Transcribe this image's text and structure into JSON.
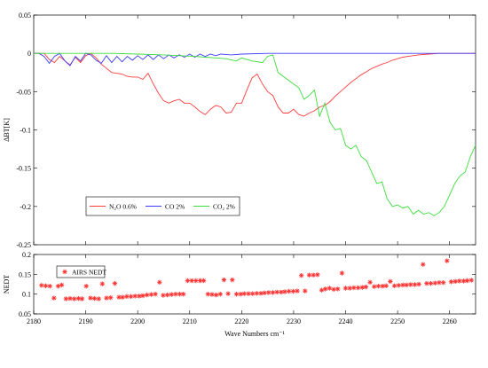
{
  "chart_data": [
    {
      "type": "line",
      "ylabel": "ΔBT[K]",
      "xlim": [
        2180,
        2265
      ],
      "ylim": [
        -0.25,
        0.05
      ],
      "yticks": [
        "0.05",
        "0",
        "-0.05",
        "-0.1",
        "-0.15",
        "-0.2",
        "-0.25"
      ],
      "ytick_values": [
        0.05,
        0,
        -0.05,
        -0.1,
        -0.15,
        -0.2,
        -0.25
      ],
      "legend": {
        "placement": "lower-left",
        "entries": [
          "N2O 0.6%",
          "CO 2%",
          "CO2 2%"
        ]
      },
      "series": [
        {
          "name": "N₂O 0.6%",
          "color": "#ff3c3c",
          "x": [
            2180,
            2182,
            2183,
            2184,
            2185,
            2186,
            2187,
            2188,
            2189,
            2190,
            2191,
            2192,
            2193,
            2195,
            2197,
            2198,
            2199,
            2200,
            2201,
            2202,
            2203,
            2204,
            2205,
            2206,
            2207,
            2208,
            2209,
            2210,
            2211,
            2212,
            2213,
            2214,
            2215,
            2216,
            2217,
            2218,
            2219,
            2220,
            2221,
            2222,
            2223,
            2224,
            2225,
            2226,
            2227,
            2228,
            2229,
            2230,
            2231,
            2232,
            2233,
            2234,
            2235,
            2236,
            2237,
            2238,
            2239,
            2240,
            2241,
            2242,
            2243,
            2244,
            2245,
            2246,
            2247,
            2248,
            2249,
            2250,
            2251,
            2252,
            2254,
            2256,
            2258,
            2260,
            2262,
            2265
          ],
          "y": [
            0,
            0,
            -0.008,
            -0.012,
            -0.004,
            -0.01,
            -0.015,
            -0.005,
            -0.012,
            -0.003,
            0,
            -0.006,
            -0.014,
            -0.025,
            -0.027,
            -0.03,
            -0.031,
            -0.031,
            -0.034,
            -0.026,
            -0.04,
            -0.052,
            -0.062,
            -0.065,
            -0.062,
            -0.06,
            -0.065,
            -0.065,
            -0.07,
            -0.076,
            -0.08,
            -0.073,
            -0.068,
            -0.07,
            -0.078,
            -0.077,
            -0.065,
            -0.065,
            -0.048,
            -0.032,
            -0.027,
            -0.04,
            -0.05,
            -0.055,
            -0.07,
            -0.078,
            -0.078,
            -0.073,
            -0.08,
            -0.082,
            -0.078,
            -0.075,
            -0.07,
            -0.068,
            -0.063,
            -0.056,
            -0.05,
            -0.044,
            -0.038,
            -0.033,
            -0.028,
            -0.024,
            -0.02,
            -0.017,
            -0.014,
            -0.012,
            -0.009,
            -0.007,
            -0.005,
            -0.004,
            -0.002,
            -0.001,
            0,
            0,
            0,
            0
          ]
        },
        {
          "name": "CO 2%",
          "color": "#3c3cff",
          "x": [
            2180,
            2181,
            2182,
            2183,
            2184,
            2185,
            2186,
            2187,
            2188,
            2189,
            2190,
            2191,
            2192,
            2193,
            2194,
            2195,
            2196,
            2197,
            2198,
            2199,
            2200,
            2201,
            2202,
            2203,
            2204,
            2205,
            2206,
            2207,
            2208,
            2209,
            2210,
            2211,
            2212,
            2213,
            2214,
            2215,
            2216,
            2218,
            2220,
            2225,
            2230,
            2240,
            2250,
            2265
          ],
          "y": [
            0,
            0,
            -0.004,
            -0.013,
            -0.004,
            0,
            -0.01,
            -0.016,
            -0.004,
            -0.01,
            0,
            -0.002,
            -0.009,
            -0.013,
            -0.003,
            -0.012,
            -0.004,
            -0.011,
            -0.004,
            -0.009,
            -0.003,
            -0.008,
            -0.002,
            -0.008,
            -0.002,
            -0.007,
            -0.002,
            -0.006,
            -0.002,
            -0.005,
            -0.001,
            -0.005,
            -0.001,
            -0.004,
            -0.001,
            -0.003,
            -0.001,
            -0.002,
            -0.001,
            0,
            0,
            0,
            0,
            0
          ]
        },
        {
          "name": "CO₂ 2%",
          "color": "#3cdc3c",
          "x": [
            2180,
            2195,
            2200,
            2205,
            2208,
            2211,
            2213,
            2215,
            2217,
            2219,
            2220,
            2222,
            2224,
            2225,
            2226,
            2227,
            2228,
            2230,
            2231,
            2232,
            2233,
            2234,
            2235,
            2236,
            2237,
            2238,
            2239,
            2240,
            2241,
            2242,
            2243,
            2244,
            2245,
            2246,
            2247,
            2248,
            2249,
            2250,
            2251,
            2252,
            2253,
            2254,
            2255,
            2256,
            2257,
            2258,
            2259,
            2260,
            2261,
            2262,
            2263,
            2264,
            2265
          ],
          "y": [
            0,
            0,
            -0.001,
            -0.002,
            -0.003,
            -0.004,
            -0.005,
            -0.006,
            -0.007,
            -0.01,
            -0.006,
            -0.01,
            -0.012,
            -0.004,
            -0.002,
            -0.025,
            -0.03,
            -0.04,
            -0.045,
            -0.06,
            -0.055,
            -0.048,
            -0.082,
            -0.065,
            -0.09,
            -0.1,
            -0.098,
            -0.12,
            -0.125,
            -0.12,
            -0.135,
            -0.14,
            -0.155,
            -0.17,
            -0.168,
            -0.19,
            -0.2,
            -0.198,
            -0.202,
            -0.2,
            -0.21,
            -0.205,
            -0.21,
            -0.208,
            -0.212,
            -0.208,
            -0.2,
            -0.185,
            -0.17,
            -0.16,
            -0.155,
            -0.135,
            -0.12
          ]
        }
      ]
    },
    {
      "type": "scatter",
      "xlabel": "Wave Numbers cm⁻¹",
      "ylabel": "NEDT",
      "xlim": [
        2180,
        2265
      ],
      "ylim": [
        0.05,
        0.2
      ],
      "xticks": [
        "2180",
        "2190",
        "2200",
        "2210",
        "2220",
        "2230",
        "2240",
        "2250",
        "2260"
      ],
      "xtick_values": [
        2180,
        2190,
        2200,
        2210,
        2220,
        2230,
        2240,
        2250,
        2260
      ],
      "yticks": [
        "0.2",
        "0.15",
        "0.1",
        "0.05"
      ],
      "ytick_values": [
        0.2,
        0.15,
        0.1,
        0.05
      ],
      "legend": {
        "placement": "top-left",
        "entries": [
          "AIRS NEDT"
        ]
      },
      "series": [
        {
          "name": "AIRS NEDT",
          "color": "#ff3030",
          "x": [
            2181.5,
            2182.3,
            2183.1,
            2183.9,
            2184.7,
            2185.4,
            2186.2,
            2187.0,
            2187.8,
            2188.6,
            2189.3,
            2190.1,
            2190.9,
            2191.7,
            2192.5,
            2193.2,
            2194.0,
            2194.8,
            2195.6,
            2196.4,
            2197.1,
            2197.9,
            2198.7,
            2199.5,
            2200.3,
            2201.0,
            2201.8,
            2202.6,
            2203.4,
            2204.2,
            2204.9,
            2205.7,
            2206.5,
            2207.3,
            2208.1,
            2208.8,
            2209.6,
            2210.4,
            2211.2,
            2212.0,
            2212.7,
            2213.5,
            2214.3,
            2215.1,
            2215.9,
            2216.6,
            2217.4,
            2218.2,
            2219.0,
            2219.8,
            2220.5,
            2221.3,
            2222.1,
            2222.9,
            2223.7,
            2224.4,
            2225.2,
            2226.0,
            2226.8,
            2227.6,
            2228.3,
            2229.1,
            2229.9,
            2230.7,
            2231.5,
            2232.2,
            2233.0,
            2233.8,
            2234.6,
            2235.4,
            2236.1,
            2236.9,
            2237.7,
            2238.5,
            2239.3,
            2240.0,
            2240.8,
            2241.6,
            2242.4,
            2243.2,
            2243.9,
            2244.7,
            2245.5,
            2246.3,
            2247.1,
            2247.8,
            2248.6,
            2249.4,
            2250.2,
            2251.0,
            2251.7,
            2252.5,
            2253.3,
            2254.1,
            2254.9,
            2255.6,
            2256.4,
            2257.2,
            2258.0,
            2258.8,
            2259.5,
            2260.3,
            2261.1,
            2261.9,
            2262.7,
            2263.4,
            2264.2
          ],
          "y": [
            0.122,
            0.121,
            0.12,
            0.09,
            0.12,
            0.123,
            0.088,
            0.089,
            0.088,
            0.089,
            0.088,
            0.12,
            0.09,
            0.089,
            0.088,
            0.126,
            0.09,
            0.091,
            0.127,
            0.092,
            0.092,
            0.094,
            0.094,
            0.095,
            0.095,
            0.096,
            0.098,
            0.099,
            0.1,
            0.13,
            0.097,
            0.098,
            0.099,
            0.1,
            0.1,
            0.1,
            0.134,
            0.134,
            0.134,
            0.134,
            0.134,
            0.1,
            0.099,
            0.098,
            0.1,
            0.136,
            0.101,
            0.136,
            0.1,
            0.1,
            0.101,
            0.101,
            0.101,
            0.102,
            0.102,
            0.103,
            0.104,
            0.104,
            0.105,
            0.105,
            0.106,
            0.107,
            0.107,
            0.108,
            0.147,
            0.108,
            0.148,
            0.148,
            0.149,
            0.11,
            0.113,
            0.115,
            0.112,
            0.113,
            0.153,
            0.115,
            0.115,
            0.116,
            0.116,
            0.117,
            0.118,
            0.13,
            0.119,
            0.12,
            0.12,
            0.121,
            0.132,
            0.121,
            0.122,
            0.123,
            0.123,
            0.124,
            0.124,
            0.125,
            0.175,
            0.127,
            0.127,
            0.128,
            0.129,
            0.129,
            0.184,
            0.131,
            0.132,
            0.133,
            0.133,
            0.134,
            0.135
          ]
        }
      ]
    }
  ]
}
